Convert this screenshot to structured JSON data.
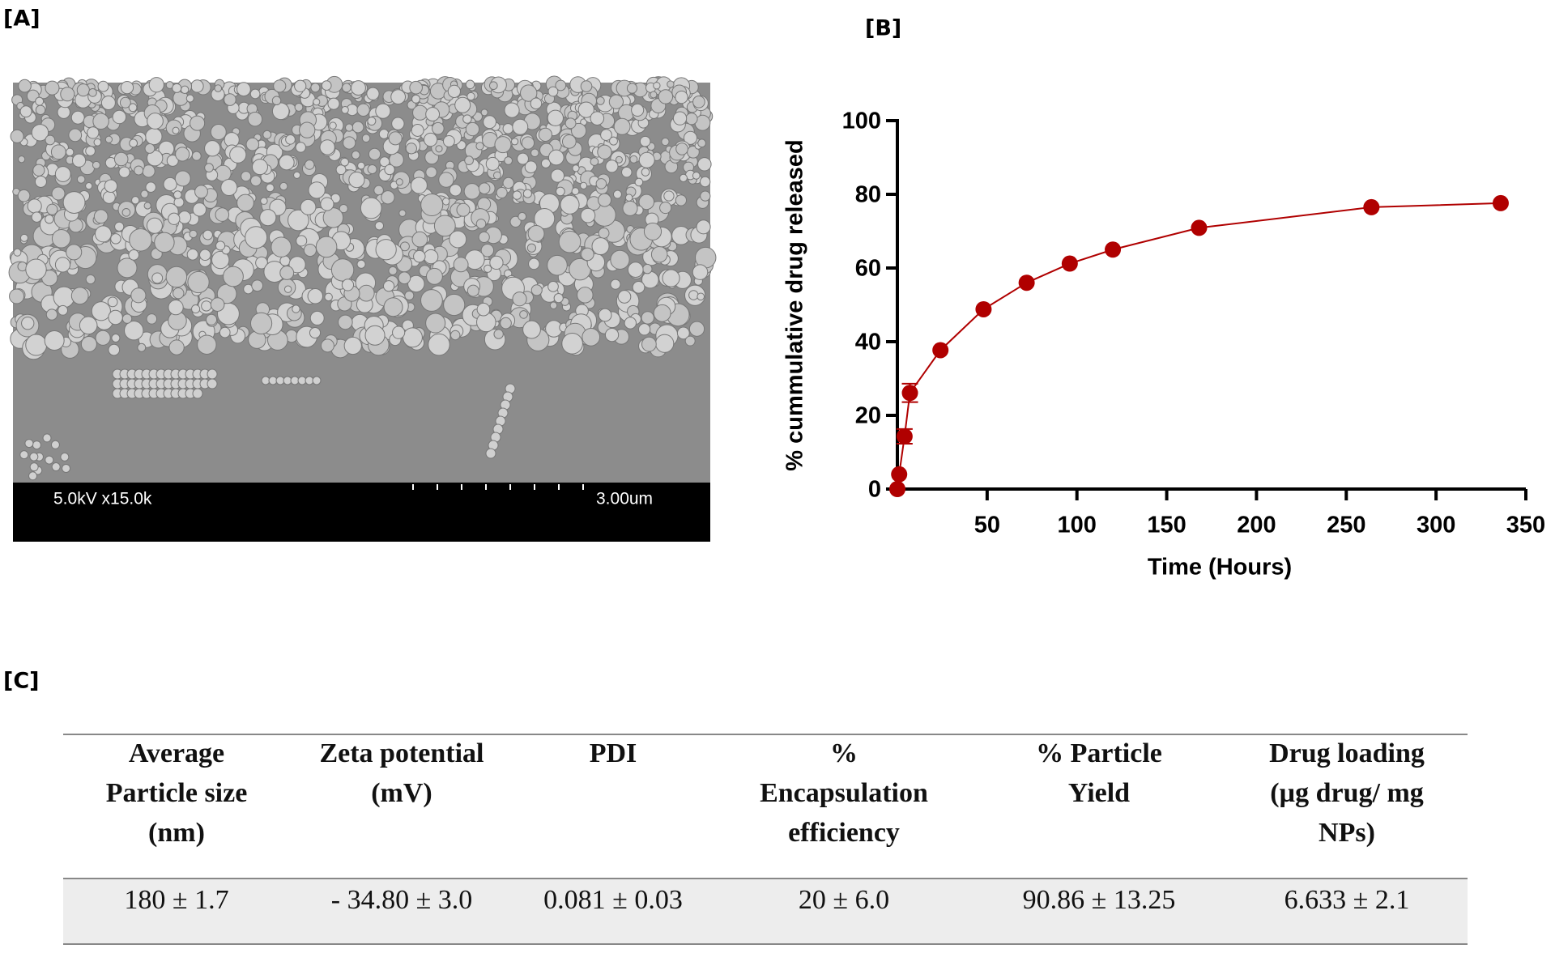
{
  "panels": {
    "a": "[A]",
    "b": "[B]",
    "c": "[C]"
  },
  "sem": {
    "voltage_magnification": "5.0kV x15.0k",
    "scale": "3.00um"
  },
  "chart_data": {
    "type": "line",
    "y_label": "% cummulative drug released",
    "x_label": "Time (Hours)",
    "x": [
      0,
      1,
      4,
      7,
      24,
      48,
      72,
      96,
      120,
      168,
      264,
      336
    ],
    "values": [
      0,
      4,
      14.3,
      26.1,
      37.7,
      48.8,
      56,
      61.2,
      65,
      70.9,
      76.5,
      77.6
    ],
    "errors": [
      0,
      0,
      2,
      2.5,
      0,
      0,
      0,
      0,
      0,
      0,
      0,
      0
    ],
    "color": "#b00000",
    "xlim": [
      0,
      350
    ],
    "xticks": [
      50,
      100,
      150,
      200,
      250,
      300,
      350
    ],
    "ylim": [
      0,
      100
    ],
    "yticks": [
      0,
      20,
      40,
      60,
      80,
      100
    ]
  },
  "table": {
    "headers": [
      [
        "Average",
        "Particle size",
        "(nm)"
      ],
      [
        "Zeta potential",
        "(mV)"
      ],
      [
        "PDI"
      ],
      [
        "%",
        "Encapsulation",
        "efficiency"
      ],
      [
        "% Particle",
        "Yield"
      ],
      [
        "Drug loading",
        "(µg drug/ mg",
        "NPs)"
      ]
    ],
    "rows": [
      [
        "180 ± 1.7",
        "- 34.80 ± 3.0",
        "0.081 ± 0.03",
        "20 ± 6.0",
        "90.86 ± 13.25",
        "6.633 ± 2.1"
      ]
    ]
  }
}
